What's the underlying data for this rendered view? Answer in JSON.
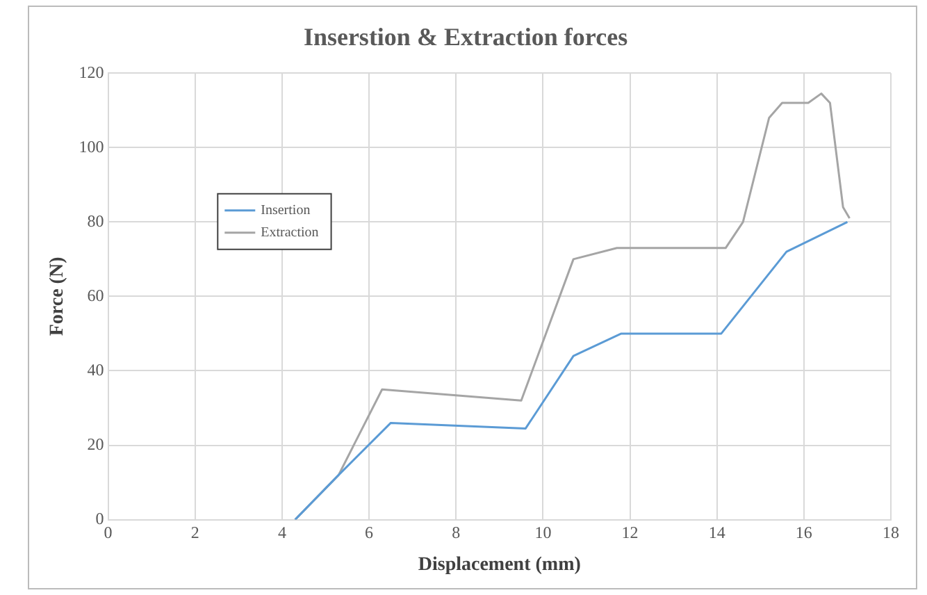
{
  "chart_data": {
    "type": "line",
    "title": "Inserstion & Extraction forces",
    "xlabel": "Displacement (mm)",
    "ylabel": "Force (N)",
    "xlim": [
      0,
      18
    ],
    "xticks": [
      0,
      2,
      4,
      6,
      8,
      10,
      12,
      14,
      16,
      18
    ],
    "ylim": [
      0,
      120
    ],
    "yticks": [
      0,
      20,
      40,
      60,
      80,
      100,
      120
    ],
    "grid": true,
    "legend": "top left",
    "marker": "none",
    "line_style": "solid",
    "series": [
      {
        "name": "Insertion",
        "color": "#5b9bd5",
        "x": [
          4.3,
          5.3,
          6.5,
          9.6,
          10.7,
          11.8,
          14.1,
          15.6,
          17
        ],
        "values": [
          0,
          12,
          26,
          24.5,
          44,
          50,
          50,
          72,
          80
        ]
      },
      {
        "name": "Extraction",
        "color": "#a5a5a5",
        "x": [
          4.3,
          5.3,
          6.3,
          9.5,
          10.7,
          11.7,
          14.2,
          14.6,
          15.2,
          15.5,
          16.1,
          16.4,
          16.6,
          16.9,
          17.05
        ],
        "values": [
          0,
          12,
          35,
          32,
          70,
          73,
          73,
          80,
          108,
          112,
          112,
          114.5,
          112,
          84,
          81
        ]
      }
    ]
  }
}
